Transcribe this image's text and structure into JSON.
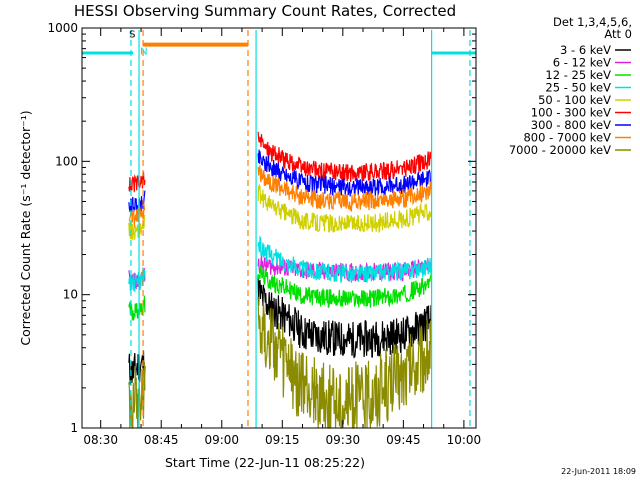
{
  "chart_data": {
    "type": "line",
    "title": "HESSI Observing Summary Count Rates, Corrected",
    "xlabel": "Start Time (22-Jun-11 08:25:22)",
    "ylabel": "Corrected Count Rate (s⁻¹ detector⁻¹)",
    "y_scale": "log",
    "ylim": [
      1,
      1000
    ],
    "xlim": [
      "08:25:22",
      "10:03:00"
    ],
    "grid": false,
    "x_ticks": [
      "08:30",
      "08:45",
      "09:00",
      "09:15",
      "09:30",
      "09:45",
      "10:00"
    ],
    "y_ticks": [
      "1",
      "10",
      "100",
      "1000"
    ],
    "legend": {
      "placement": "right-outside",
      "header_line1": "Det 1,3,4,5,6,",
      "header_line2": "Att 0"
    },
    "series": [
      {
        "name": "3 - 6 keV",
        "color": "#000000",
        "segments": [
          {
            "x": [
              "08:37",
              "08:38",
              "08:39",
              "08:40",
              "08:41"
            ],
            "y": [
              2.8,
              2.6,
              2.9,
              3.0,
              3.1
            ]
          },
          {
            "x": [
              "09:09",
              "09:10",
              "09:12",
              "09:15",
              "09:18",
              "09:20",
              "09:25",
              "09:30",
              "09:35",
              "09:40",
              "09:45",
              "09:48",
              "09:50",
              "09:51",
              "09:52"
            ],
            "y": [
              11.0,
              9.5,
              8.0,
              7.0,
              6.0,
              5.2,
              4.8,
              4.6,
              4.6,
              4.8,
              5.0,
              5.5,
              6.0,
              6.2,
              6.4
            ]
          }
        ]
      },
      {
        "name": "6 - 12 keV",
        "color": "#e020e0",
        "segments": [
          {
            "x": [
              "08:37",
              "08:38",
              "08:39",
              "08:40",
              "08:41"
            ],
            "y": [
              13.0,
              12.5,
              12.5,
              13.0,
              14.0
            ]
          },
          {
            "x": [
              "09:09",
              "09:10",
              "09:12",
              "09:15",
              "09:18",
              "09:20",
              "09:25",
              "09:30",
              "09:35",
              "09:40",
              "09:45",
              "09:48",
              "09:50",
              "09:51",
              "09:52"
            ],
            "y": [
              17.0,
              16.8,
              16.5,
              16.0,
              15.5,
              15.2,
              15.0,
              14.8,
              14.6,
              14.8,
              15.0,
              15.5,
              16.0,
              16.2,
              16.4
            ]
          }
        ]
      },
      {
        "name": "12 - 25 keV",
        "color": "#00e000",
        "segments": [
          {
            "x": [
              "08:37",
              "08:38",
              "08:39",
              "08:40",
              "08:41"
            ],
            "y": [
              7.8,
              7.5,
              7.6,
              8.0,
              8.6
            ]
          },
          {
            "x": [
              "09:09",
              "09:10",
              "09:12",
              "09:15",
              "09:18",
              "09:20",
              "09:25",
              "09:30",
              "09:35",
              "09:40",
              "09:45",
              "09:48",
              "09:50",
              "09:51",
              "09:52"
            ],
            "y": [
              15.0,
              14.0,
              12.5,
              11.5,
              10.5,
              9.8,
              9.5,
              9.3,
              9.3,
              9.5,
              10.0,
              11.0,
              11.5,
              12.0,
              12.5
            ]
          }
        ]
      },
      {
        "name": "25 - 50 keV",
        "color": "#00e0e0",
        "segments": [
          {
            "x": [
              "08:37",
              "08:38",
              "08:39",
              "08:40",
              "08:41"
            ],
            "y": [
              12.0,
              12.2,
              12.5,
              13.0,
              14.5
            ]
          },
          {
            "x": [
              "09:09",
              "09:10",
              "09:12",
              "09:15",
              "09:18",
              "09:20",
              "09:25",
              "09:30",
              "09:35",
              "09:40",
              "09:45",
              "09:48",
              "09:50",
              "09:51",
              "09:52"
            ],
            "y": [
              24.0,
              22.0,
              20.0,
              18.0,
              16.5,
              15.5,
              14.8,
              14.4,
              14.4,
              14.6,
              15.0,
              15.6,
              16.0,
              16.4,
              16.8
            ]
          }
        ]
      },
      {
        "name": "50 - 100 keV",
        "color": "#d0d000",
        "segments": [
          {
            "x": [
              "08:37",
              "08:38",
              "08:39",
              "08:40",
              "08:41"
            ],
            "y": [
              31.0,
              29.5,
              30.0,
              31.0,
              34.0
            ]
          },
          {
            "x": [
              "09:09",
              "09:10",
              "09:12",
              "09:15",
              "09:18",
              "09:20",
              "09:25",
              "09:30",
              "09:35",
              "09:40",
              "09:45",
              "09:48",
              "09:50",
              "09:51",
              "09:52"
            ],
            "y": [
              58.0,
              53.0,
              47.0,
              42.0,
              38.0,
              36.0,
              34.5,
              34.0,
              34.0,
              35.0,
              37.0,
              39.0,
              41.0,
              42.0,
              43.0
            ]
          }
        ]
      },
      {
        "name": "100 - 300 keV",
        "color": "#ff0000",
        "segments": [
          {
            "x": [
              "08:37",
              "08:38",
              "08:39",
              "08:40",
              "08:41"
            ],
            "y": [
              68.0,
              66.0,
              67.0,
              70.0,
              78.0
            ]
          },
          {
            "x": [
              "09:09",
              "09:10",
              "09:12",
              "09:15",
              "09:18",
              "09:20",
              "09:25",
              "09:30",
              "09:35",
              "09:40",
              "09:45",
              "09:48",
              "09:50",
              "09:51",
              "09:52"
            ],
            "y": [
              145.0,
              135.0,
              120.0,
              105.0,
              95.0,
              89.0,
              84.0,
              82.0,
              82.0,
              84.0,
              88.0,
              94.0,
              98.0,
              101.0,
              104.0
            ]
          }
        ]
      },
      {
        "name": "300 - 800 keV",
        "color": "#0000ff",
        "segments": [
          {
            "x": [
              "08:37",
              "08:38",
              "08:39",
              "08:40",
              "08:41"
            ],
            "y": [
              48.0,
              46.0,
              46.0,
              48.0,
              53.0
            ]
          },
          {
            "x": [
              "09:09",
              "09:10",
              "09:12",
              "09:15",
              "09:18",
              "09:20",
              "09:25",
              "09:30",
              "09:35",
              "09:40",
              "09:45",
              "09:48",
              "09:50",
              "09:51",
              "09:52"
            ],
            "y": [
              110.0,
              102.0,
              92.0,
              82.0,
              74.0,
              70.0,
              66.0,
              64.0,
              64.0,
              65.0,
              67.0,
              70.0,
              72.0,
              73.0,
              74.0
            ]
          }
        ]
      },
      {
        "name": "800 - 7000 keV",
        "color": "#ff8000",
        "segments": [
          {
            "x": [
              "08:37",
              "08:38",
              "08:39",
              "08:40",
              "08:41"
            ],
            "y": [
              40.0,
              37.0,
              38.0,
              40.0,
              45.0
            ]
          },
          {
            "x": [
              "09:09",
              "09:10",
              "09:12",
              "09:15",
              "09:18",
              "09:20",
              "09:25",
              "09:30",
              "09:35",
              "09:40",
              "09:45",
              "09:48",
              "09:50",
              "09:51",
              "09:52"
            ],
            "y": [
              85.0,
              79.0,
              71.0,
              63.0,
              57.0,
              54.0,
              51.0,
              50.0,
              50.0,
              51.0,
              53.0,
              56.0,
              59.0,
              60.0,
              61.0
            ]
          }
        ]
      },
      {
        "name": "7000 - 20000 keV",
        "color": "#8b8b00",
        "segments": [
          {
            "x": [
              "08:37",
              "08:38",
              "08:39",
              "08:40",
              "08:41"
            ],
            "y": [
              1.8,
              1.6,
              1.7,
              1.8,
              1.9
            ]
          },
          {
            "x": [
              "09:09",
              "09:10",
              "09:12",
              "09:15",
              "09:18",
              "09:20",
              "09:25",
              "09:30",
              "09:35",
              "09:40",
              "09:45",
              "09:48",
              "09:50",
              "09:51",
              "09:52"
            ],
            "y": [
              7.0,
              6.0,
              4.5,
              3.2,
              2.4,
              2.0,
              1.7,
              1.6,
              1.7,
              2.0,
              2.5,
              3.0,
              3.4,
              3.7,
              3.9
            ]
          }
        ]
      }
    ],
    "attenuator_periods": [
      {
        "color": "#00e0e0",
        "y": 650,
        "x": [
          "08:25:22",
          "08:38:00"
        ]
      },
      {
        "color": "#00e0e0",
        "y": 650,
        "x": [
          "09:52:00",
          "10:03:00"
        ]
      }
    ],
    "saa_periods": [
      {
        "label": "S",
        "color": "#ff8000",
        "y": 750,
        "x": [
          "08:40:30",
          "09:06:30"
        ]
      }
    ],
    "night_markers": [
      {
        "label": "N",
        "color": "#00e0e0"
      }
    ],
    "vertical_markers": [
      {
        "x": "08:37:30",
        "color": "#00e0e0",
        "style": "dashed"
      },
      {
        "x": "08:39:30",
        "color": "#00e0e0",
        "style": "solid"
      },
      {
        "x": "08:40:30",
        "color": "#ff8000",
        "style": "dashed"
      },
      {
        "x": "09:06:30",
        "color": "#ff8000",
        "style": "dashed"
      },
      {
        "x": "09:08:30",
        "color": "#00e0e0",
        "style": "solid"
      },
      {
        "x": "09:52:00",
        "color": "#00e0e0",
        "style": "solid"
      },
      {
        "x": "10:01:30",
        "color": "#00e0e0",
        "style": "dashed"
      }
    ],
    "footer": "22-Jun-2011 18:09"
  }
}
